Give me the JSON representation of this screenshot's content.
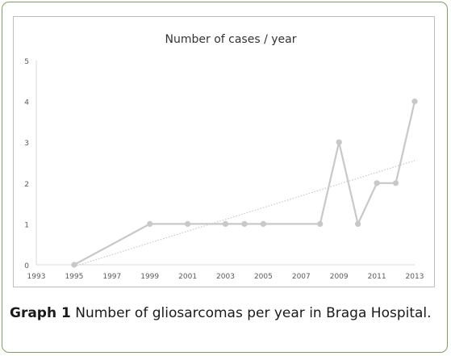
{
  "caption": {
    "label": "Graph 1",
    "text": " Number of gliosarcomas per year in Braga Hospital."
  },
  "colors": {
    "frame_border": "#7aa35a",
    "series_line": "#c8c8c8",
    "trend_line": "#c8c8c8"
  },
  "chart_data": {
    "type": "line",
    "title": "Number of cases / year",
    "xlabel": "",
    "ylabel": "",
    "xlim": [
      1993,
      2013
    ],
    "ylim": [
      0,
      5
    ],
    "x_ticks": [
      "1993",
      "1995",
      "1997",
      "1999",
      "2001",
      "2003",
      "2005",
      "2007",
      "2009",
      "2011",
      "2013"
    ],
    "y_ticks": [
      "0",
      "1",
      "2",
      "3",
      "4",
      "5"
    ],
    "grid": false,
    "legend": "none",
    "series": [
      {
        "x": [
          1995,
          1999,
          2001,
          2003,
          2004,
          2005,
          2008,
          2009,
          2010,
          2011,
          2012,
          2013
        ],
        "y": [
          0,
          1,
          1,
          1,
          1,
          1,
          1,
          3,
          1,
          2,
          2,
          4
        ],
        "marker": "circle"
      }
    ],
    "trendline": {
      "type": "linear",
      "style": "dotted",
      "x": [
        1995,
        2013
      ],
      "y": [
        -0.04,
        2.55
      ]
    }
  }
}
